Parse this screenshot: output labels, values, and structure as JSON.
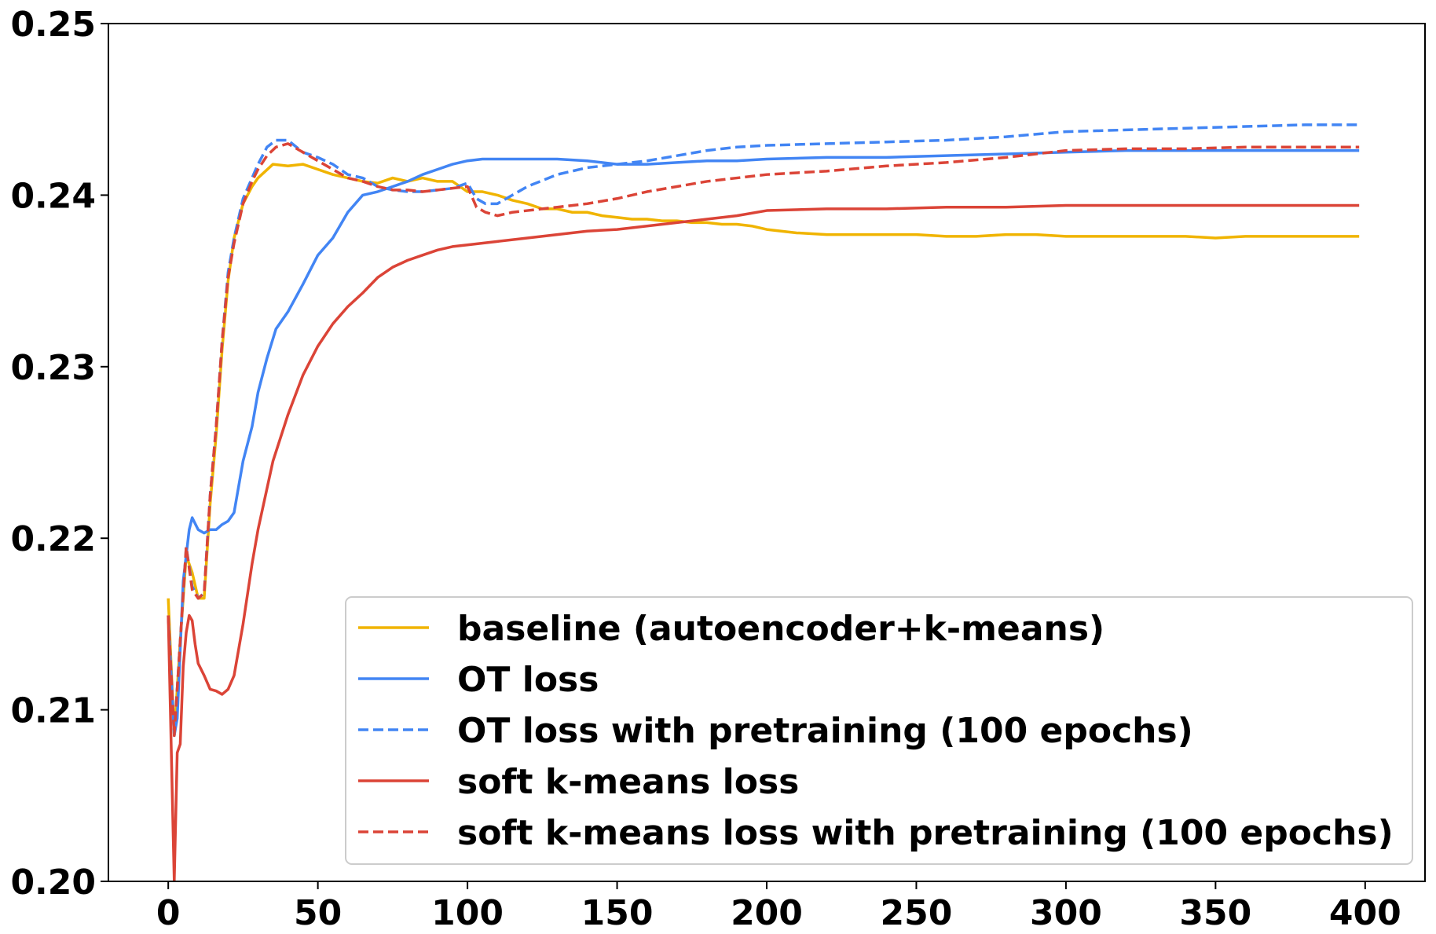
{
  "chart_data": {
    "type": "line",
    "title": "",
    "xlabel": "",
    "ylabel": "",
    "xlim": [
      -20,
      420
    ],
    "ylim": [
      0.2,
      0.25
    ],
    "xticks": [
      "0",
      "50",
      "100",
      "150",
      "200",
      "250",
      "300",
      "350",
      "400"
    ],
    "yticks": [
      "0.20",
      "0.21",
      "0.22",
      "0.23",
      "0.24",
      "0.25"
    ],
    "legend_position": "lower-right",
    "series": [
      {
        "name": "baseline (autoencoder+k-means)",
        "color": "#f0b400",
        "dash": "solid",
        "x": [
          0,
          2,
          4,
          6,
          8,
          10,
          12,
          14,
          16,
          18,
          20,
          22,
          25,
          28,
          30,
          35,
          40,
          45,
          50,
          55,
          60,
          65,
          70,
          75,
          80,
          85,
          90,
          95,
          100,
          105,
          110,
          115,
          120,
          125,
          130,
          135,
          140,
          145,
          150,
          155,
          160,
          165,
          170,
          175,
          180,
          185,
          190,
          195,
          200,
          210,
          220,
          230,
          240,
          250,
          260,
          270,
          280,
          290,
          300,
          310,
          320,
          330,
          340,
          350,
          360,
          370,
          380,
          390,
          398
        ],
        "y": [
          0.2165,
          0.2085,
          0.214,
          0.219,
          0.218,
          0.2165,
          0.2165,
          0.222,
          0.226,
          0.231,
          0.235,
          0.2375,
          0.2395,
          0.2405,
          0.241,
          0.2418,
          0.2417,
          0.2418,
          0.2415,
          0.2412,
          0.241,
          0.2408,
          0.2407,
          0.241,
          0.2408,
          0.241,
          0.2408,
          0.2408,
          0.2402,
          0.2402,
          0.24,
          0.2397,
          0.2395,
          0.2392,
          0.2392,
          0.239,
          0.239,
          0.2388,
          0.2387,
          0.2386,
          0.2386,
          0.2385,
          0.2385,
          0.2384,
          0.2384,
          0.2383,
          0.2383,
          0.2382,
          0.238,
          0.2378,
          0.2377,
          0.2377,
          0.2377,
          0.2377,
          0.2376,
          0.2376,
          0.2377,
          0.2377,
          0.2376,
          0.2376,
          0.2376,
          0.2376,
          0.2376,
          0.2375,
          0.2376,
          0.2376,
          0.2376,
          0.2376,
          0.2376
        ]
      },
      {
        "name": "OT loss",
        "color": "#4285f4",
        "dash": "solid",
        "x": [
          0,
          2,
          3,
          5,
          7,
          8,
          10,
          12,
          14,
          16,
          18,
          20,
          22,
          25,
          28,
          30,
          33,
          36,
          40,
          45,
          50,
          55,
          60,
          65,
          70,
          75,
          80,
          85,
          90,
          95,
          100,
          105,
          110,
          120,
          130,
          140,
          150,
          160,
          170,
          180,
          190,
          200,
          220,
          240,
          260,
          280,
          300,
          320,
          340,
          360,
          380,
          398
        ],
        "y": [
          0.2155,
          0.2085,
          0.2095,
          0.2175,
          0.2205,
          0.2212,
          0.2205,
          0.2203,
          0.2205,
          0.2205,
          0.2208,
          0.221,
          0.2215,
          0.2245,
          0.2265,
          0.2285,
          0.2305,
          0.2322,
          0.2332,
          0.2348,
          0.2365,
          0.2375,
          0.239,
          0.24,
          0.2402,
          0.2405,
          0.2408,
          0.2412,
          0.2415,
          0.2418,
          0.242,
          0.2421,
          0.2421,
          0.2421,
          0.2421,
          0.242,
          0.2418,
          0.2418,
          0.2419,
          0.242,
          0.242,
          0.2421,
          0.2422,
          0.2422,
          0.2423,
          0.2424,
          0.2425,
          0.2426,
          0.2426,
          0.2426,
          0.2426,
          0.2426
        ]
      },
      {
        "name": "OT loss with pretraining (100 epochs)",
        "color": "#4285f4",
        "dash": "dashed",
        "x": [
          0,
          2,
          4,
          6,
          8,
          10,
          12,
          14,
          16,
          18,
          20,
          22,
          25,
          28,
          30,
          33,
          36,
          40,
          45,
          50,
          55,
          60,
          65,
          70,
          75,
          80,
          85,
          90,
          95,
          100,
          103,
          106,
          110,
          115,
          120,
          130,
          140,
          150,
          160,
          170,
          180,
          190,
          200,
          220,
          240,
          260,
          280,
          300,
          320,
          340,
          360,
          380,
          398
        ],
        "y": [
          0.2155,
          0.2085,
          0.214,
          0.2195,
          0.2172,
          0.2165,
          0.2168,
          0.2225,
          0.2265,
          0.2315,
          0.2355,
          0.2375,
          0.2398,
          0.241,
          0.2418,
          0.2428,
          0.2432,
          0.2432,
          0.2425,
          0.2422,
          0.2418,
          0.2412,
          0.241,
          0.2405,
          0.2403,
          0.2402,
          0.2402,
          0.2403,
          0.2404,
          0.2407,
          0.2398,
          0.2395,
          0.2395,
          0.24,
          0.2405,
          0.2412,
          0.2416,
          0.2418,
          0.242,
          0.2423,
          0.2426,
          0.2428,
          0.2429,
          0.243,
          0.2431,
          0.2432,
          0.2434,
          0.2437,
          0.2438,
          0.2439,
          0.244,
          0.2441,
          0.2441
        ]
      },
      {
        "name": "soft k-means loss",
        "color": "#db4437",
        "dash": "solid",
        "x": [
          0,
          2,
          3,
          4,
          5,
          6,
          7,
          8,
          9,
          10,
          12,
          14,
          16,
          18,
          20,
          22,
          25,
          28,
          30,
          35,
          40,
          45,
          50,
          55,
          60,
          65,
          70,
          75,
          80,
          85,
          90,
          95,
          100,
          110,
          120,
          130,
          140,
          150,
          160,
          170,
          180,
          190,
          200,
          220,
          240,
          260,
          280,
          300,
          320,
          340,
          360,
          380,
          398
        ],
        "y": [
          0.2155,
          0.2,
          0.2075,
          0.208,
          0.2125,
          0.2145,
          0.2155,
          0.2152,
          0.2138,
          0.2127,
          0.212,
          0.2112,
          0.2111,
          0.2109,
          0.2112,
          0.212,
          0.215,
          0.2185,
          0.2205,
          0.2245,
          0.2272,
          0.2295,
          0.2312,
          0.2325,
          0.2335,
          0.2343,
          0.2352,
          0.2358,
          0.2362,
          0.2365,
          0.2368,
          0.237,
          0.2371,
          0.2373,
          0.2375,
          0.2377,
          0.2379,
          0.238,
          0.2382,
          0.2384,
          0.2386,
          0.2388,
          0.2391,
          0.2392,
          0.2392,
          0.2393,
          0.2393,
          0.2394,
          0.2394,
          0.2394,
          0.2394,
          0.2394,
          0.2394
        ]
      },
      {
        "name": "soft k-means loss with pretraining (100 epochs)",
        "color": "#db4437",
        "dash": "dashed",
        "x": [
          0,
          2,
          4,
          6,
          8,
          10,
          12,
          14,
          16,
          18,
          20,
          22,
          25,
          28,
          30,
          33,
          36,
          40,
          45,
          50,
          55,
          60,
          65,
          70,
          75,
          80,
          85,
          90,
          95,
          100,
          103,
          106,
          110,
          115,
          120,
          130,
          140,
          150,
          160,
          170,
          180,
          190,
          200,
          220,
          240,
          260,
          280,
          300,
          320,
          340,
          360,
          380,
          398
        ],
        "y": [
          0.2155,
          0.2085,
          0.214,
          0.2195,
          0.217,
          0.2165,
          0.2168,
          0.2225,
          0.2265,
          0.2315,
          0.2352,
          0.2372,
          0.2395,
          0.2408,
          0.2415,
          0.2423,
          0.2428,
          0.243,
          0.2425,
          0.242,
          0.2415,
          0.241,
          0.2408,
          0.2405,
          0.2403,
          0.2403,
          0.2402,
          0.2403,
          0.2404,
          0.2405,
          0.2393,
          0.239,
          0.2388,
          0.239,
          0.2391,
          0.2393,
          0.2395,
          0.2398,
          0.2402,
          0.2405,
          0.2408,
          0.241,
          0.2412,
          0.2414,
          0.2417,
          0.2419,
          0.2422,
          0.2426,
          0.2427,
          0.2427,
          0.2428,
          0.2428,
          0.2428
        ]
      }
    ]
  }
}
